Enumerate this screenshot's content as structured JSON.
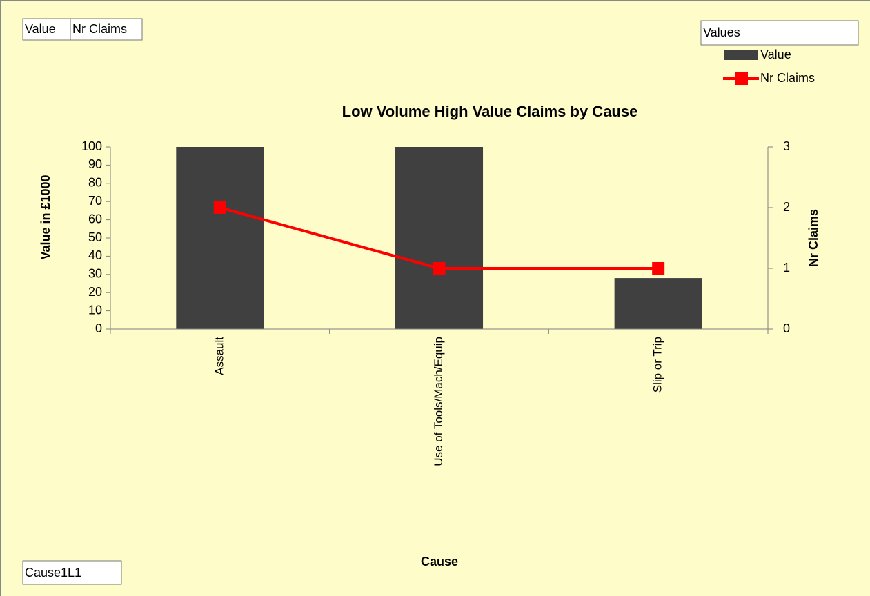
{
  "chart_data": {
    "type": "combo",
    "title": "Low Volume High Value Claims by Cause",
    "x_label": "Cause",
    "y_label": "Value in £1000",
    "y2_label": "Nr Claims",
    "categories": [
      "Assault",
      "Use of Tools/Mach/Equip",
      "Slip or Trip"
    ],
    "series": [
      {
        "name": "Value",
        "type": "bar",
        "color": "#404040",
        "values": [
          100,
          100,
          28
        ]
      },
      {
        "name": "Nr Claims",
        "type": "line",
        "axis": "y2",
        "color": "#ff0000",
        "values": [
          2,
          1,
          1
        ]
      }
    ],
    "ylim": [
      0,
      100
    ],
    "yticks": [
      0,
      10,
      20,
      30,
      40,
      50,
      60,
      70,
      80,
      90,
      100
    ],
    "y2lim": [
      0,
      3
    ],
    "y2ticks": [
      0,
      1,
      2,
      3
    ],
    "legend_title": "Values",
    "legend_position": "top-right",
    "grid": false
  },
  "field_buttons": {
    "data": [
      "Value",
      "Nr Claims"
    ],
    "axis": "Cause1L1"
  }
}
